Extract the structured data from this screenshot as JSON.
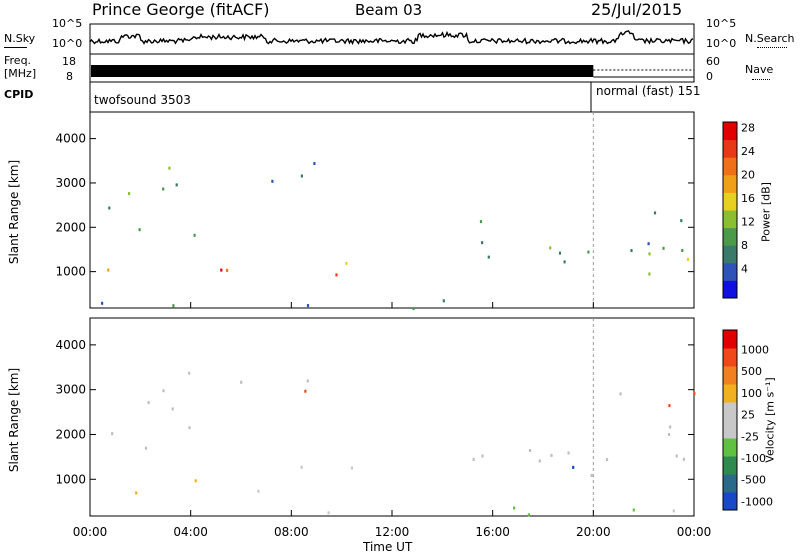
{
  "header": {
    "station": "Prince George (fitACF)",
    "beam": "Beam 03",
    "date": "25/Jul/2015"
  },
  "strips": {
    "nsky_label": "N.Sky",
    "nsky_tick_top": "10^5",
    "nsky_tick_bottom": "10^0",
    "nsearch_label": "N.Search",
    "nsearch_tick_top": "10^5",
    "nsearch_tick_bottom": "10^0",
    "freq_label_1": "Freq.",
    "freq_label_2": "[MHz]",
    "freq_tick_top": "18",
    "freq_tick_bottom": "8",
    "nave_label": "Nave",
    "nave_tick_top": "60",
    "nave_tick_bottom": "0",
    "cpid_label": "CPID",
    "cpid_1": "twofsound 3503",
    "cpid_2": "normal (fast) 151"
  },
  "chart_data": [
    {
      "type": "heatmap",
      "ylabel": "Slant Range [km]",
      "xlabel": "Time UT",
      "ylim": [
        180,
        4600
      ],
      "yticks": [
        1000,
        2000,
        3000,
        4000
      ],
      "xlim_hours": [
        0,
        24
      ],
      "xticks": [
        "00:00",
        "04:00",
        "08:00",
        "12:00",
        "16:00",
        "20:00",
        "00:00"
      ],
      "colorbar": {
        "label": "Power [dB]",
        "ticks": [
          "4",
          "8",
          "12",
          "16",
          "20",
          "24",
          "28"
        ],
        "colors": [
          "#1010e0",
          "#2e52b8",
          "#3a7a6a",
          "#4a9a4a",
          "#8ac030",
          "#e8d020",
          "#f0a018",
          "#f07018",
          "#e83818",
          "#e00000"
        ]
      },
      "cpid_change_hour": 20
    },
    {
      "type": "heatmap",
      "ylabel": "Slant Range [km]",
      "xlabel": "Time UT",
      "ylim": [
        180,
        4600
      ],
      "yticks": [
        1000,
        2000,
        3000,
        4000
      ],
      "xlim_hours": [
        0,
        24
      ],
      "xticks": [
        "00:00",
        "04:00",
        "08:00",
        "12:00",
        "16:00",
        "20:00",
        "00:00"
      ],
      "colorbar": {
        "label": "Velocity [m s⁻¹]",
        "ticks": [
          "1000",
          "500",
          "100",
          "25",
          "-25",
          "-100",
          "-500",
          "-1000"
        ],
        "colors": [
          "#1848c8",
          "#2a6a88",
          "#2f8a50",
          "#60c040",
          "#c8c8c8",
          "#c8c8c8",
          "#f0b020",
          "#f08020",
          "#f04818",
          "#e00000"
        ]
      },
      "ground_scatter_color": "#bebebe"
    }
  ]
}
